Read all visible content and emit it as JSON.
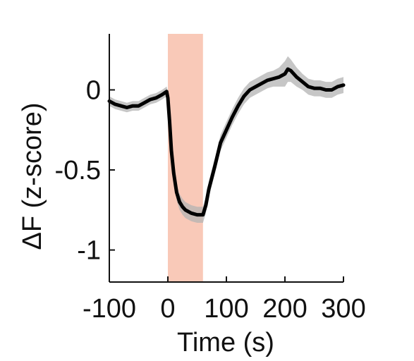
{
  "chart_data": {
    "type": "line",
    "title": "",
    "xlabel": "Time (s)",
    "ylabel": "ΔF (z-score)",
    "xlim": [
      -100,
      300
    ],
    "ylim": [
      -1.2,
      0.35
    ],
    "x_ticks": [
      -100,
      0,
      100,
      200,
      300
    ],
    "x_tick_labels": [
      "-100",
      "0",
      "100",
      "200",
      "300"
    ],
    "y_ticks": [
      0,
      -0.5,
      -1
    ],
    "y_tick_labels": [
      "0",
      "-0.5",
      "-1"
    ],
    "grid": false,
    "legend": "none",
    "stimulus_window": {
      "start": 0,
      "end": 60,
      "color": "#f9c9b8"
    },
    "series": [
      {
        "color": "#000000",
        "error_band_color": "#b3b3b3",
        "x": [
          -100,
          -90,
          -80,
          -70,
          -60,
          -50,
          -40,
          -30,
          -20,
          -10,
          -2,
          0,
          3,
          6,
          10,
          15,
          20,
          25,
          30,
          40,
          50,
          60,
          65,
          70,
          80,
          90,
          100,
          110,
          120,
          130,
          140,
          150,
          160,
          170,
          180,
          190,
          195,
          200,
          205,
          210,
          220,
          230,
          240,
          250,
          260,
          270,
          280,
          290,
          300
        ],
        "y": [
          -0.07,
          -0.09,
          -0.1,
          -0.11,
          -0.1,
          -0.1,
          -0.08,
          -0.06,
          -0.05,
          -0.03,
          -0.01,
          -0.05,
          -0.2,
          -0.38,
          -0.52,
          -0.64,
          -0.7,
          -0.73,
          -0.75,
          -0.77,
          -0.78,
          -0.78,
          -0.72,
          -0.62,
          -0.48,
          -0.33,
          -0.25,
          -0.17,
          -0.1,
          -0.04,
          0.0,
          0.02,
          0.04,
          0.06,
          0.07,
          0.08,
          0.09,
          0.1,
          0.13,
          0.12,
          0.08,
          0.05,
          0.02,
          0.01,
          0.01,
          0.0,
          0.0,
          0.02,
          0.03
        ],
        "error": [
          0.03,
          0.03,
          0.03,
          0.03,
          0.03,
          0.03,
          0.03,
          0.03,
          0.03,
          0.03,
          0.03,
          0.04,
          0.05,
          0.05,
          0.05,
          0.05,
          0.05,
          0.05,
          0.05,
          0.05,
          0.05,
          0.05,
          0.05,
          0.05,
          0.05,
          0.05,
          0.05,
          0.05,
          0.05,
          0.05,
          0.05,
          0.05,
          0.05,
          0.05,
          0.05,
          0.06,
          0.07,
          0.08,
          0.08,
          0.07,
          0.06,
          0.05,
          0.05,
          0.05,
          0.05,
          0.05,
          0.05,
          0.05,
          0.05
        ]
      }
    ]
  }
}
